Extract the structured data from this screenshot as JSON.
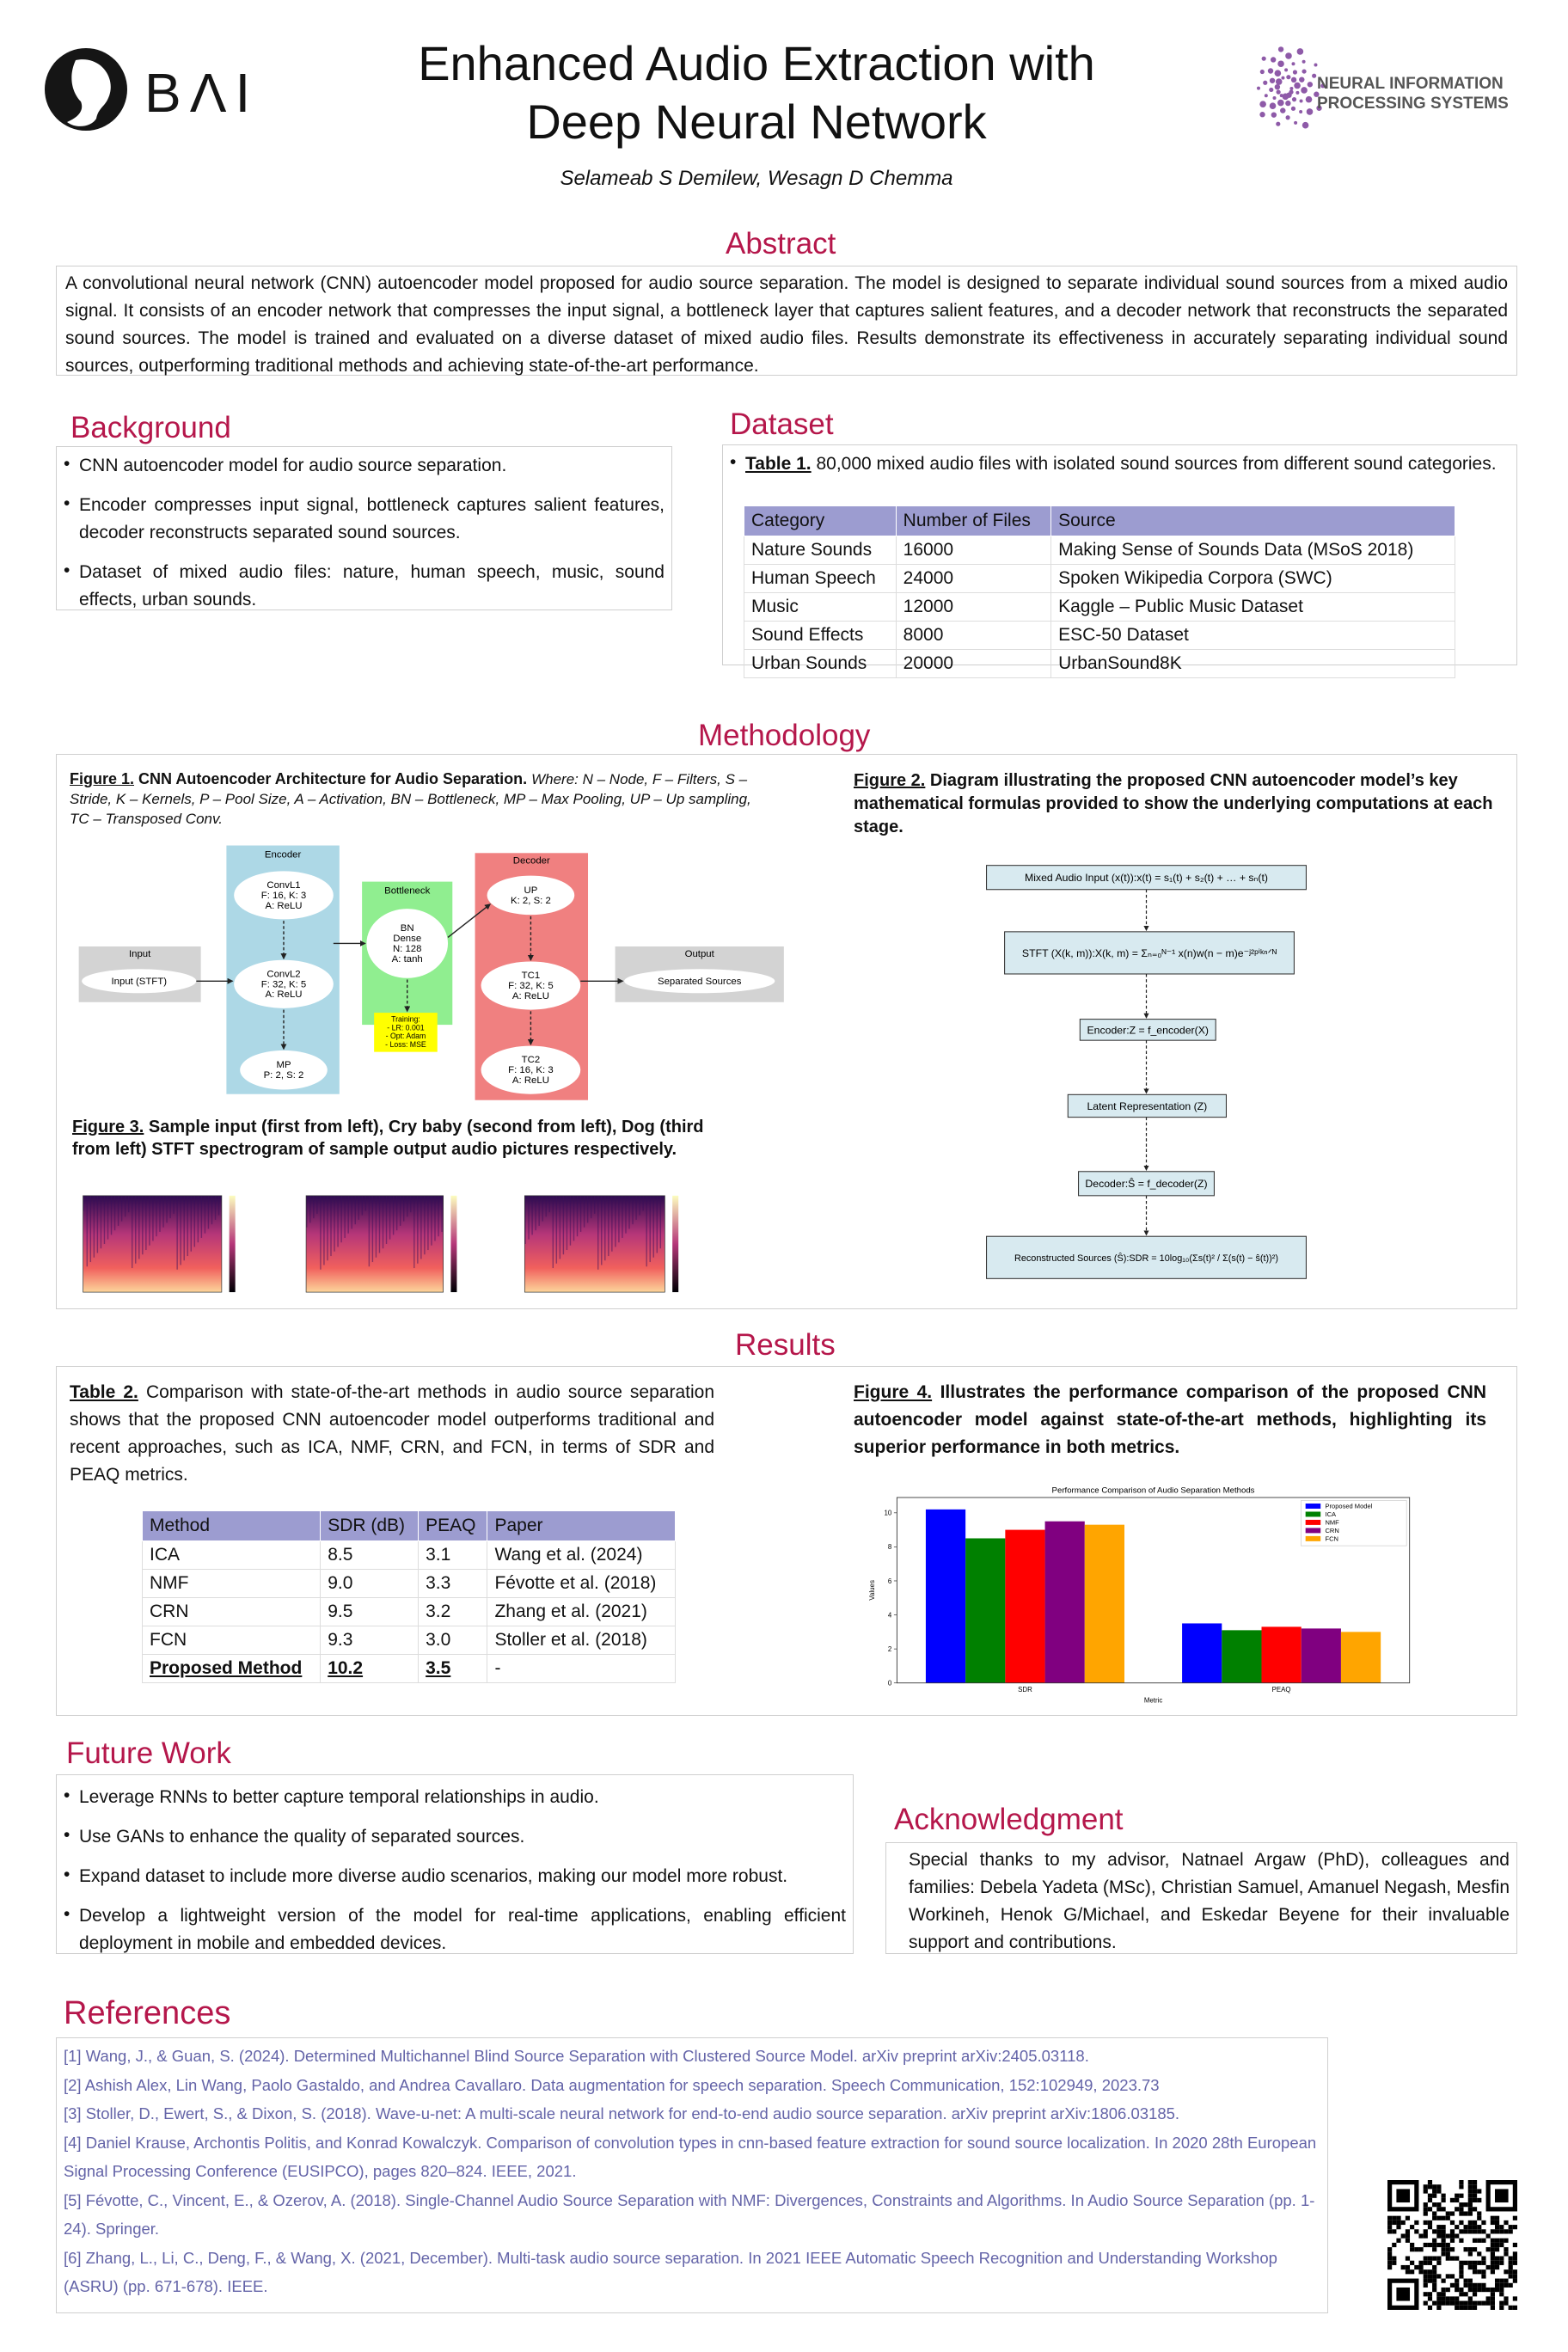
{
  "header": {
    "logo_left": "BΛI",
    "title_lines": [
      "Enhanced Audio Extraction with",
      "Deep Neural Network"
    ],
    "authors": "Selameab S Demilew, Wesagn D Chemma",
    "logo_right_lines": [
      "NEURAL INFORMATION",
      "PROCESSING SYSTEMS"
    ]
  },
  "abstract": {
    "heading": "Abstract",
    "text": "A convolutional neural network (CNN) autoencoder model proposed for audio source separation. The model is designed to separate individual sound sources from a mixed audio signal. It consists of an encoder network that compresses the input signal, a bottleneck layer that captures salient features, and a decoder network that reconstructs the separated sound sources. The model is trained and evaluated on a diverse dataset of mixed audio files. Results demonstrate its effectiveness in accurately separating individual sound sources, outperforming traditional methods and achieving state-of-the-art performance."
  },
  "background": {
    "heading": "Background",
    "items": [
      "CNN autoencoder model for audio source separation.",
      "Encoder compresses input signal, bottleneck captures salient features, decoder reconstructs separated sound sources.",
      "Dataset of mixed audio files: nature, human speech, music, sound effects, urban sounds."
    ]
  },
  "dataset": {
    "heading": "Dataset",
    "caption_label": "Table 1.",
    "caption": "80,000 mixed audio files with isolated sound sources from different sound categories.",
    "table": {
      "columns": [
        "Category",
        "Number of Files",
        "Source"
      ],
      "rows": [
        [
          "Nature Sounds",
          "16000",
          "Making Sense of Sounds Data (MSoS 2018)"
        ],
        [
          "Human Speech",
          "24000",
          "Spoken Wikipedia Corpora (SWC)"
        ],
        [
          "Music",
          "12000",
          "Kaggle – Public Music Dataset"
        ],
        [
          "Sound Effects",
          "8000",
          "ESC-50 Dataset"
        ],
        [
          "Urban Sounds",
          "20000",
          "UrbanSound8K"
        ]
      ]
    }
  },
  "methodology": {
    "heading": "Methodology",
    "figure1": {
      "label": "Figure 1.",
      "title": "CNN Autoencoder Architecture for Audio Separation.",
      "note": "Where: N – Node, F – Filters, S – Stride, K – Kernels, P – Pool Size, A – Activation, BN – Bottleneck, MP – Max Pooling, UP – Up sampling, TC – Transposed Conv."
    },
    "diagram": {
      "groups": [
        "Input",
        "Encoder",
        "Bottleneck",
        "Decoder",
        "Output"
      ],
      "nodes": [
        [
          "Input (STFT)"
        ],
        [
          "ConvL1",
          "F: 16, K: 3",
          "A: ReLU"
        ],
        [
          "ConvL2",
          "F: 32, K: 5",
          "A: ReLU"
        ],
        [
          "MP",
          "P: 2, S: 2"
        ],
        [
          "BN",
          "Dense",
          "N: 128",
          "A: tanh"
        ],
        [
          "UP",
          "K: 2, S: 2"
        ],
        [
          "TC1",
          "F: 32, K: 5",
          "A: ReLU"
        ],
        [
          "TC2",
          "F: 16, K: 3",
          "A: ReLU"
        ],
        [
          "Separated Sources"
        ]
      ],
      "training": [
        "Training:",
        "- LR: 0.001",
        "- Opt: Adam",
        "- Loss: MSE"
      ]
    },
    "figure2": {
      "label": "Figure 2.",
      "title": "Diagram illustrating the proposed CNN autoencoder model’s key mathematical formulas provided to show the underlying computations at each stage.",
      "steps": [
        "Mixed Audio Input (x(t)):x(t) = s₁(t) + s₂(t) + … + sₙ(t)",
        "STFT (X(k, m)):X(k, m) = Σₙ₌₀ᴺ⁻¹ x(n)w(n − m)e⁻ʲ²ᵖⁱᵏⁿᐟᴺ",
        "Encoder:Z = f_encoder(X)",
        "Latent Representation (Z)",
        "Decoder:Ŝ = f_decoder(Z)",
        "Reconstructed Sources (Ŝ):SDR = 10log₁₀(Σs(t)² / Σ(s(t) − ŝ(t))²)"
      ]
    },
    "figure3": {
      "label": "Figure 3.",
      "title": "Sample input (first from left), Cry baby (second from left), Dog (third from left) STFT spectrogram of sample output audio pictures respectively."
    }
  },
  "results": {
    "heading": "Results",
    "table_label": "Table 2.",
    "table_caption": "Comparison with state-of-the-art methods in audio source separation shows that the proposed CNN autoencoder model outperforms traditional and recent approaches, such as ICA, NMF, CRN, and FCN, in terms of SDR and PEAQ metrics.",
    "table": {
      "columns": [
        "Method",
        "SDR (dB)",
        "PEAQ",
        "Paper"
      ],
      "rows": [
        [
          "ICA",
          "8.5",
          "3.1",
          "Wang et al. (2024)"
        ],
        [
          "NMF",
          "9.0",
          "3.3",
          "Févotte et al. (2018)"
        ],
        [
          "CRN",
          "9.5",
          "3.2",
          "Zhang et al. (2021)"
        ],
        [
          "FCN",
          "9.3",
          "3.0",
          "Stoller et al. (2018)"
        ],
        [
          "Proposed Method",
          "10.2",
          "3.5",
          "-"
        ]
      ]
    },
    "figure_label": "Figure 4.",
    "figure_caption": "Illustrates the performance comparison of the proposed CNN autoencoder model against state-of-the-art methods, highlighting its superior performance in both metrics."
  },
  "chart_data": {
    "type": "bar",
    "title": "Performance Comparison of Audio Separation Methods",
    "x_label": "Metric",
    "y_label": "Values",
    "categories": [
      "SDR",
      "PEAQ"
    ],
    "series": [
      {
        "name": "Proposed Model",
        "color": "#0000ff",
        "values": [
          10.2,
          3.5
        ]
      },
      {
        "name": "ICA",
        "color": "#008000",
        "values": [
          8.5,
          3.1
        ]
      },
      {
        "name": "NMF",
        "color": "#ff0000",
        "values": [
          9.0,
          3.3
        ]
      },
      {
        "name": "CRN",
        "color": "#800080",
        "values": [
          9.5,
          3.2
        ]
      },
      {
        "name": "FCN",
        "color": "#ffa500",
        "values": [
          9.3,
          3.0
        ]
      }
    ],
    "ylim": [
      0,
      10.9
    ],
    "yticks": [
      0,
      2,
      4,
      6,
      8,
      10
    ],
    "legend": "upper right",
    "grid": false
  },
  "future_work": {
    "heading": "Future Work",
    "items": [
      "Leverage RNNs to better capture temporal relationships in audio.",
      "Use GANs to enhance the quality of separated sources.",
      "Expand dataset to include more diverse audio scenarios, making our model more robust.",
      "Develop a lightweight version of the model for real-time applications, enabling efficient deployment in mobile and embedded devices."
    ]
  },
  "acknowledgment": {
    "heading": "Acknowledgment",
    "text": "Special thanks to my advisor, Natnael Argaw (PhD), colleagues and families: Debela Yadeta (MSc), Christian Samuel, Amanuel Negash, Mesfin Workineh, Henok G/Michael, and Eskedar Beyene for their invaluable support and contributions."
  },
  "references": {
    "heading": "References",
    "items": [
      "[1] Wang, J., & Guan, S. (2024). Determined Multichannel Blind Source Separation with Clustered Source Model. arXiv preprint arXiv:2405.03118.",
      "[2] Ashish Alex, Lin Wang, Paolo Gastaldo, and Andrea Cavallaro. Data augmentation for speech separation. Speech Communication, 152:102949, 2023.73",
      "[3] Stoller, D., Ewert, S., & Dixon, S. (2018). Wave-u-net: A multi-scale neural network for end-to-end audio source separation. arXiv preprint arXiv:1806.03185.",
      "[4] Daniel Krause, Archontis Politis, and Konrad Kowalczyk. Comparison of convolution types in cnn-based feature extraction for sound source localization. In 2020 28th European Signal Processing Conference (EUSIPCO), pages 820–824. IEEE, 2021.",
      "[5] Févotte, C., Vincent, E., & Ozerov, A. (2018). Single-Channel Audio Source Separation with NMF: Divergences, Constraints and Algorithms. In Audio Source Separation (pp. 1-24). Springer.",
      "[6] Zhang, L., Li, C., Deng, F., & Wang, X. (2021, December). Multi-task audio source separation. In 2021 IEEE Automatic Speech Recognition and Understanding Workshop (ASRU) (pp. 671-678). IEEE."
    ]
  }
}
